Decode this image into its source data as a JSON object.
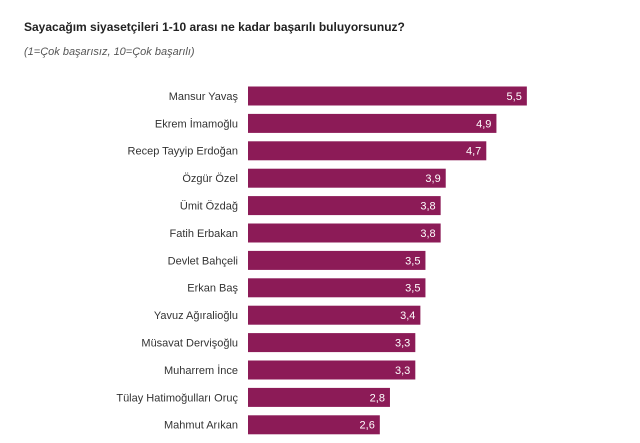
{
  "chart_data": {
    "type": "bar",
    "orientation": "horizontal",
    "title": "Sayacağım siyasetçileri 1-10 arası ne kadar başarılı buluyorsunuz?",
    "subtitle": "(1=Çok başarısız, 10=Çok başarılı)",
    "categories": [
      "Mansur Yavaş",
      "Ekrem İmamoğlu",
      "Recep Tayyip Erdoğan",
      "Özgür Özel",
      "Ümit Özdağ",
      "Fatih Erbakan",
      "Devlet Bahçeli",
      "Erkan Baş",
      "Yavuz Ağıralioğlu",
      "Müsavat Dervişoğlu",
      "Muharrem İnce",
      "Tülay Hatimoğulları Oruç",
      "Mahmut Arıkan"
    ],
    "values": [
      5.5,
      4.9,
      4.7,
      3.9,
      3.8,
      3.8,
      3.5,
      3.5,
      3.4,
      3.3,
      3.3,
      2.8,
      2.6
    ],
    "value_labels": [
      "5,5",
      "4,9",
      "4,7",
      "3,9",
      "3,8",
      "3,8",
      "3,5",
      "3,5",
      "3,4",
      "3,3",
      "3,3",
      "2,8",
      "2,6"
    ],
    "color": "#8c1b57"
  }
}
